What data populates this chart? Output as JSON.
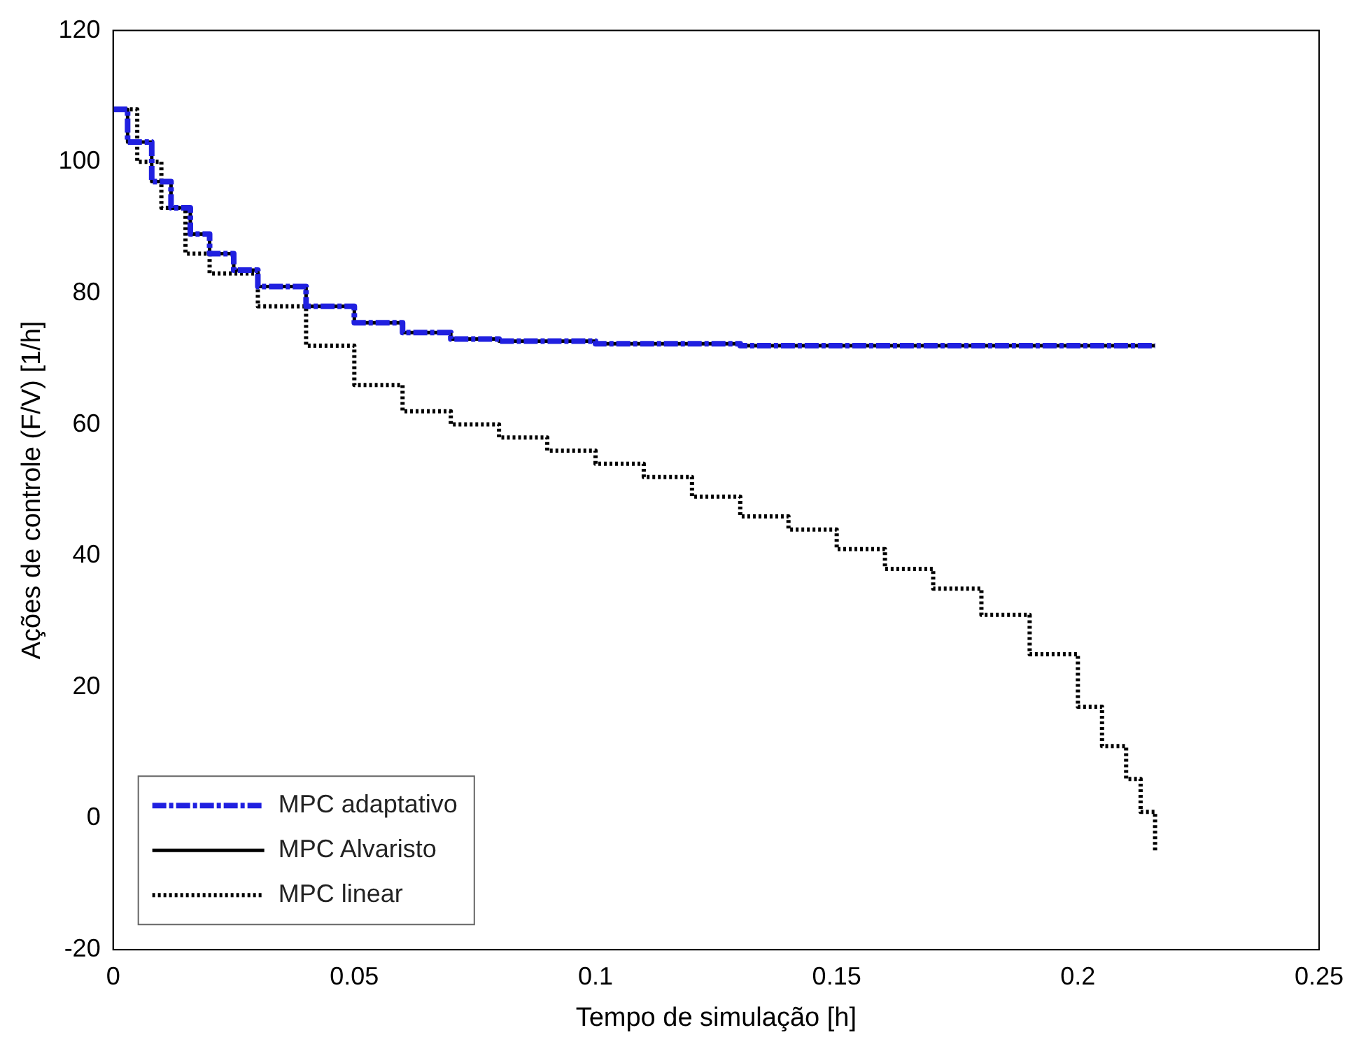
{
  "chart_data": {
    "type": "step",
    "xlabel": "Tempo de simulação [h]",
    "ylabel": "Ações de controle (F/V) [1/h]",
    "xlim": [
      0,
      0.25
    ],
    "xticks": [
      0,
      0.05,
      0.1,
      0.15,
      0.2,
      0.25
    ],
    "ylim": [
      -20,
      120
    ],
    "yticks": [
      -20,
      0,
      20,
      40,
      60,
      80,
      100,
      120
    ],
    "grid": false,
    "legend": "bottom left",
    "marker": "none",
    "series": [
      {
        "name": "MPC adaptativo",
        "color": "#2020e0",
        "line_style": "dashed",
        "x": [
          0,
          0.003,
          0.008,
          0.012,
          0.016,
          0.02,
          0.025,
          0.03,
          0.04,
          0.05,
          0.06,
          0.07,
          0.08,
          0.1,
          0.13,
          0.216
        ],
        "values": [
          108,
          103,
          97,
          93,
          89,
          86,
          83.5,
          81,
          78,
          75.5,
          74,
          73,
          72.7,
          72.3,
          72,
          72
        ]
      },
      {
        "name": "MPC Alvaristo",
        "color": "#000000",
        "line_style": "solid",
        "x": [
          0,
          0.003,
          0.008,
          0.012,
          0.016,
          0.02,
          0.025,
          0.03,
          0.04,
          0.05,
          0.06,
          0.07,
          0.08,
          0.1,
          0.13,
          0.216
        ],
        "values": [
          108,
          103,
          97,
          93,
          89,
          86,
          83.5,
          81,
          78,
          75.5,
          74,
          73,
          72.7,
          72.3,
          72,
          72
        ]
      },
      {
        "name": "MPC linear",
        "color": "#000000",
        "line_style": "dotted",
        "x": [
          0,
          0.005,
          0.01,
          0.015,
          0.02,
          0.03,
          0.04,
          0.05,
          0.06,
          0.07,
          0.08,
          0.09,
          0.1,
          0.11,
          0.12,
          0.13,
          0.14,
          0.15,
          0.16,
          0.17,
          0.18,
          0.19,
          0.2,
          0.205,
          0.21,
          0.213,
          0.216
        ],
        "values": [
          108,
          100,
          93,
          86,
          83,
          78,
          72,
          66,
          62,
          60,
          58,
          56,
          54,
          52,
          49,
          46,
          44,
          41,
          38,
          35,
          31,
          25,
          17,
          11,
          6,
          1,
          -5
        ]
      }
    ]
  }
}
